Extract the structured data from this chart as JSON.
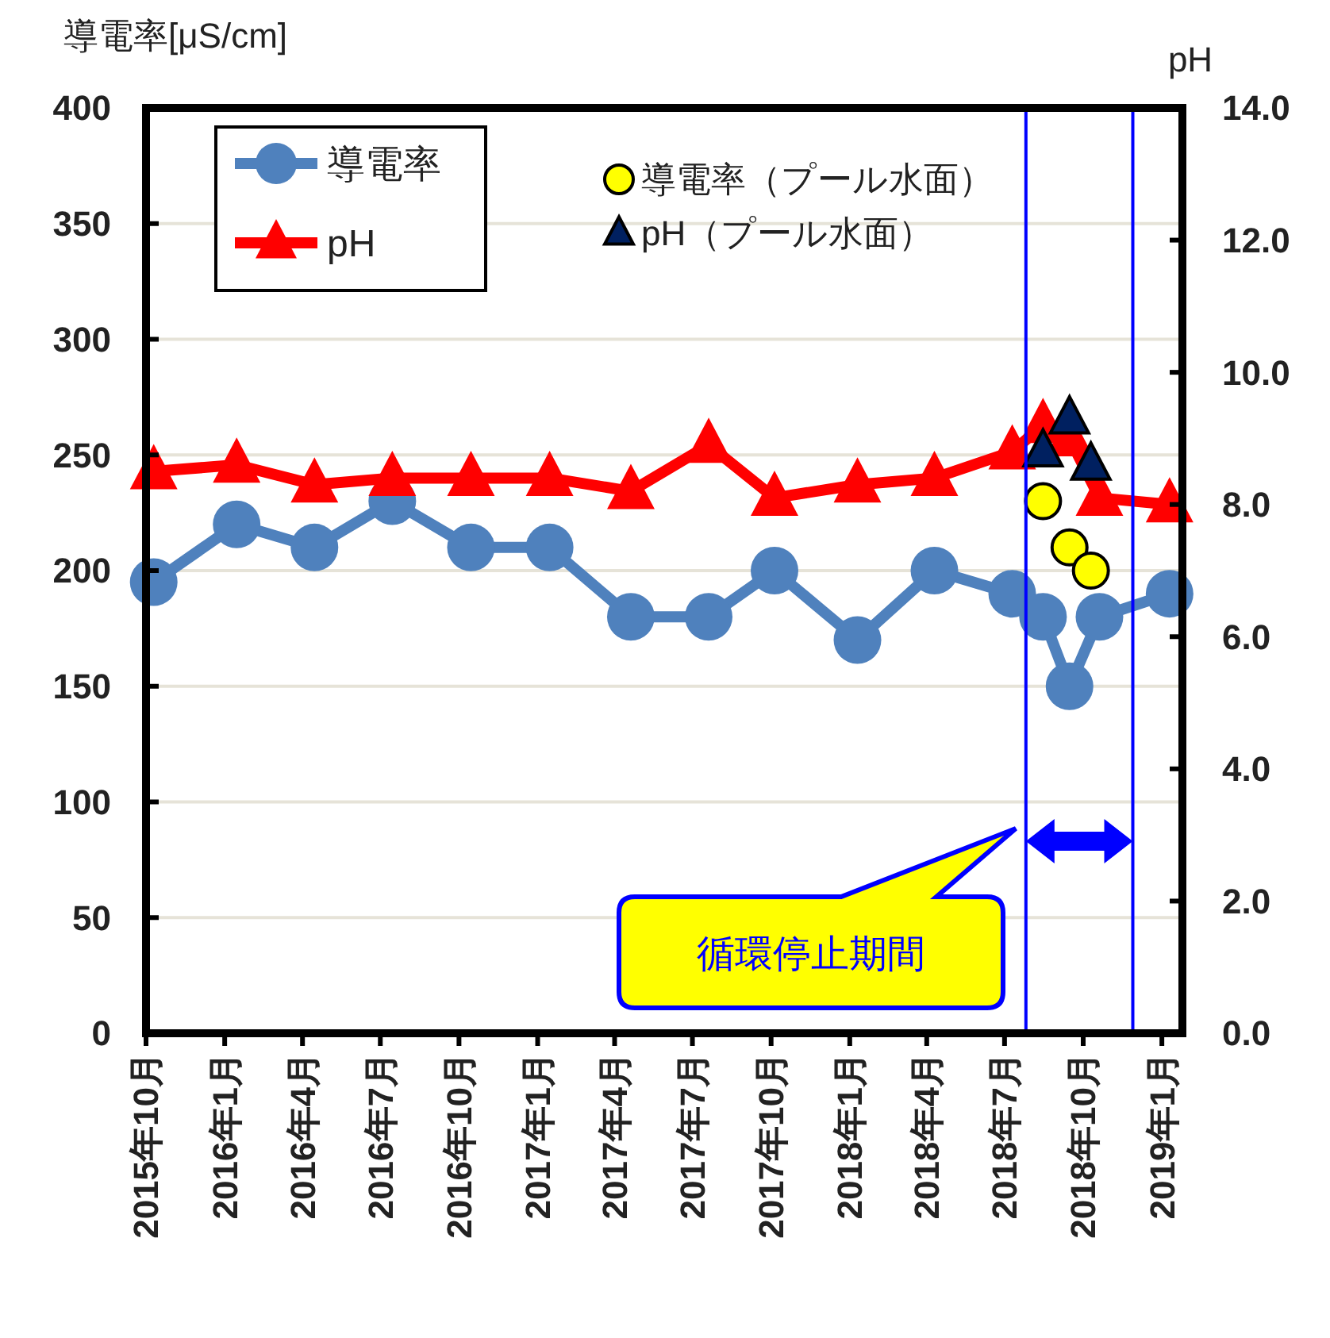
{
  "chart_data": {
    "type": "line",
    "ylabel": "導電率[μS/cm]",
    "y2label": "pH",
    "x": [
      "2015-10-10",
      "2016-01-15",
      "2016-04-15",
      "2016-07-15",
      "2016-10-15",
      "2017-01-15",
      "2017-04-20",
      "2017-07-20",
      "2017-10-05",
      "2018-01-10",
      "2018-04-10",
      "2018-07-10",
      "2018-08-15",
      "2018-09-15",
      "2018-10-20",
      "2019-01-10"
    ],
    "series": [
      {
        "name": "導電率",
        "color": "#4f81bd",
        "marker": "circle",
        "values": [
          195,
          220,
          210,
          230,
          210,
          210,
          180,
          180,
          200,
          170,
          200,
          190,
          180,
          150,
          180,
          190
        ]
      },
      {
        "name": "pH",
        "color": "#ff0000",
        "marker": "triangle",
        "axis": "y2",
        "values": [
          8.5,
          8.6,
          8.3,
          8.4,
          8.4,
          8.4,
          8.2,
          8.9,
          8.1,
          8.3,
          8.4,
          8.8,
          9.2,
          9.0,
          8.1,
          8.0
        ]
      },
      {
        "name": "導電率（プール水面）",
        "type": "scatter",
        "color": "#ffff00",
        "marker": "circle",
        "x": [
          "2018-08-15",
          "2018-09-15",
          "2018-10-10"
        ],
        "values": [
          230,
          210,
          200
        ]
      },
      {
        "name": "pH（プール水面）",
        "type": "scatter",
        "color": "#002060",
        "marker": "triangle",
        "axis": "y2",
        "x": [
          "2018-08-15",
          "2018-09-15",
          "2018-10-10"
        ],
        "values": [
          8.8,
          9.3,
          8.6
        ]
      }
    ],
    "xlim": [
      "2015-10-01",
      "2019-01-25"
    ],
    "xticks": [
      {
        "value": "2015-10-01",
        "label": "2015年10月"
      },
      {
        "value": "2016-01-01",
        "label": "2016年1月"
      },
      {
        "value": "2016-04-01",
        "label": "2016年4月"
      },
      {
        "value": "2016-07-01",
        "label": "2016年7月"
      },
      {
        "value": "2016-10-01",
        "label": "2016年10月"
      },
      {
        "value": "2017-01-01",
        "label": "2017年1月"
      },
      {
        "value": "2017-04-01",
        "label": "2017年4月"
      },
      {
        "value": "2017-07-01",
        "label": "2017年7月"
      },
      {
        "value": "2017-10-01",
        "label": "2017年10月"
      },
      {
        "value": "2018-01-01",
        "label": "2018年1月"
      },
      {
        "value": "2018-04-01",
        "label": "2018年4月"
      },
      {
        "value": "2018-07-01",
        "label": "2018年7月"
      },
      {
        "value": "2018-10-01",
        "label": "2018年10月"
      },
      {
        "value": "2019-01-01",
        "label": "2019年1月"
      }
    ],
    "ylim": [
      0,
      400
    ],
    "yticks": [
      0,
      50,
      100,
      150,
      200,
      250,
      300,
      350,
      400
    ],
    "y2lim": [
      0,
      14
    ],
    "y2ticks": [
      {
        "value": 0,
        "label": "0.0"
      },
      {
        "value": 2,
        "label": "2.0"
      },
      {
        "value": 4,
        "label": "4.0"
      },
      {
        "value": 6,
        "label": "6.0"
      },
      {
        "value": 8,
        "label": "8.0"
      },
      {
        "value": 10,
        "label": "10.0"
      },
      {
        "value": 12,
        "label": "12.0"
      },
      {
        "value": 14,
        "label": "14.0"
      }
    ],
    "ref_lines": [
      {
        "axis": "x",
        "value": "2018-07-26",
        "color": "#0000ff"
      },
      {
        "axis": "x",
        "value": "2018-11-28",
        "color": "#0000ff"
      }
    ],
    "annotations": [
      "循環停止期間"
    ],
    "grid": "y",
    "legend": "top"
  }
}
